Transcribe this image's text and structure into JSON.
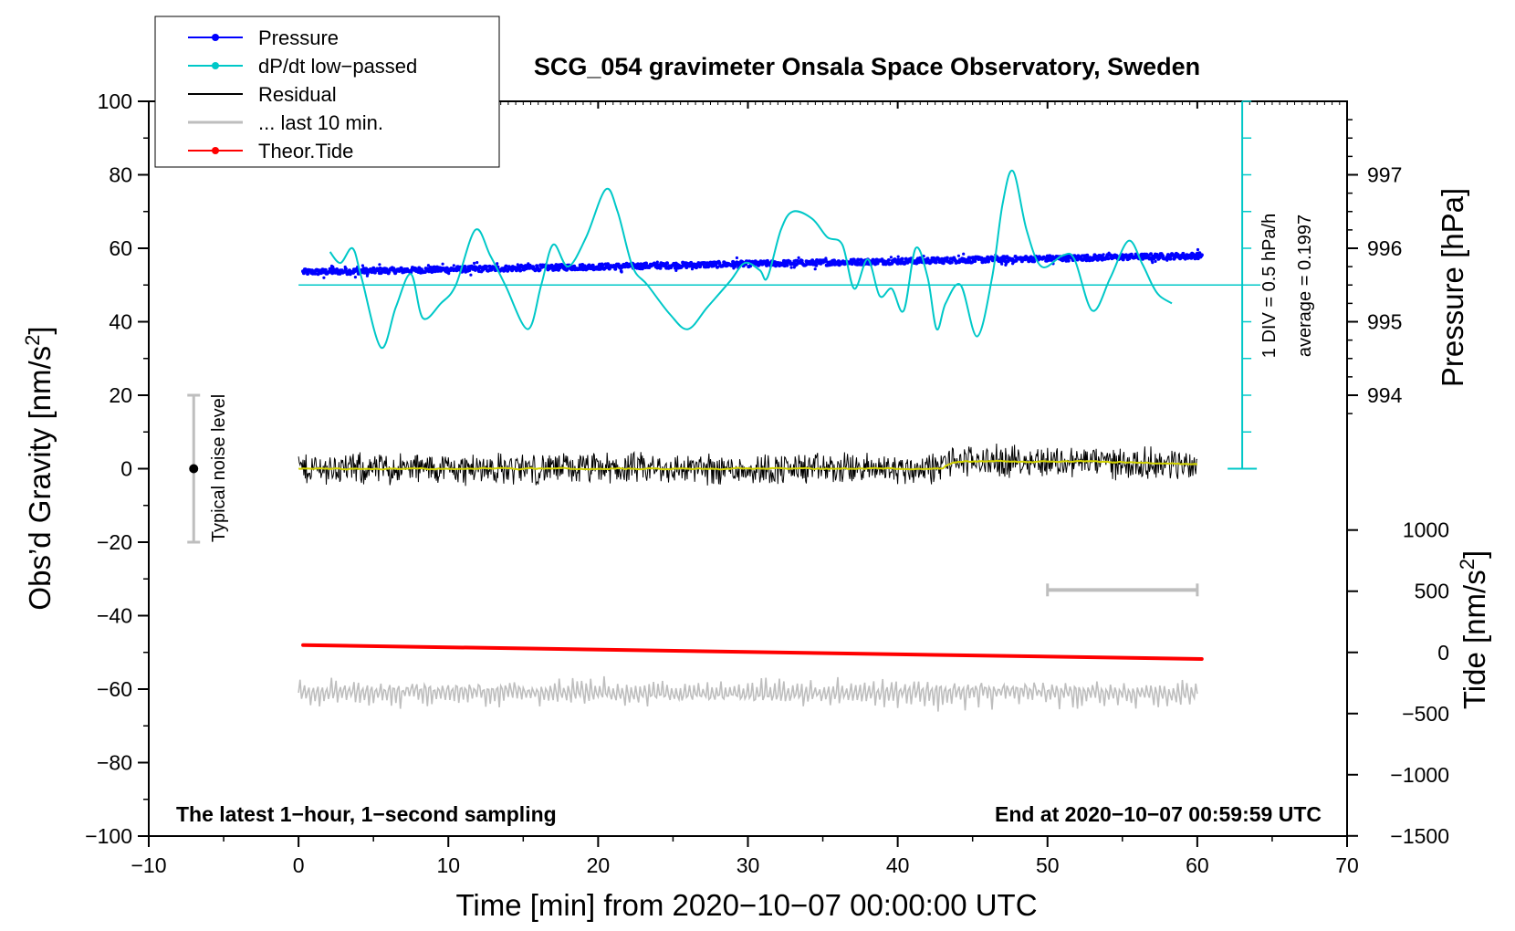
{
  "chart_data": {
    "type": "line",
    "title": "SCG_054 gravimeter Onsala Space Observatory, Sweden",
    "xlabel": "Time [min] from 2020−10−07 00:00:00 UTC",
    "ylabel_left": "Obs’d Gravity [nm/s",
    "ylabel_left_sup": "2",
    "ylabel_left_end": "]",
    "ylabel_right_pressure": "Pressure [hPa]",
    "ylabel_right_tide": "Tide [nm/s",
    "ylabel_right_tide_sup": "2",
    "ylabel_right_tide_end": "]",
    "xlim": [
      -10,
      70
    ],
    "ylim": [
      -100,
      100
    ],
    "x_ticks": [
      "−10",
      "0",
      "10",
      "20",
      "30",
      "40",
      "50",
      "60",
      "70"
    ],
    "x_tick_values": [
      -10,
      0,
      10,
      20,
      30,
      40,
      50,
      60,
      70
    ],
    "y_ticks": [
      "100",
      "80",
      "60",
      "40",
      "20",
      "0",
      "−20",
      "−40",
      "−60",
      "−80",
      "−100"
    ],
    "y_tick_values": [
      100,
      80,
      60,
      40,
      20,
      0,
      -20,
      -40,
      -60,
      -80,
      -100
    ],
    "pressure_ticks": [
      "997",
      "996",
      "995",
      "994"
    ],
    "pressure_tick_values": [
      997,
      996,
      995,
      994
    ],
    "pressure_to_gravity": {
      "p_ref": 996,
      "g_ref": 60,
      "nm_per_hpa": 20
    },
    "tide_ticks": [
      "1000",
      "500",
      "0",
      "−500",
      "−1000",
      "−1500"
    ],
    "tide_tick_values": [
      1000,
      500,
      0,
      -500,
      -1000,
      -1500
    ],
    "tide_to_gravity": {
      "t_ref": 0,
      "g_ref": -50,
      "nm_per_unit": 0.0333
    },
    "legend": [
      {
        "label": "Pressure",
        "color": "#0000ff",
        "marker": true
      },
      {
        "label": "dP/dt low−passed",
        "color": "#00c8c8",
        "marker": true
      },
      {
        "label": "Residual",
        "color": "#000000",
        "marker": false
      },
      {
        "label": "... last 10 min.",
        "color": "#bebebe",
        "marker": false
      },
      {
        "label": "Theor.Tide",
        "color": "#ff0000",
        "marker": true
      }
    ],
    "series": [
      {
        "name": "Pressure",
        "color": "#0000ff",
        "x_range": [
          0.3,
          60.3
        ],
        "start_nm": 53.5,
        "end_nm": 58.0,
        "scatter_nm": 1.5
      },
      {
        "name": "dP/dt low−passed",
        "color": "#00c8c8",
        "x": [
          2.1,
          2.8,
          3.6,
          4.2,
          5.5,
          6.5,
          7.5,
          8.3,
          9.5,
          10.5,
          11.8,
          12.8,
          13.8,
          15.3,
          16.2,
          17.0,
          18.0,
          19.2,
          20.5,
          21.3,
          22.3,
          23.3,
          24.8,
          26.0,
          27.3,
          28.8,
          29.8,
          30.8,
          31.3,
          32.2,
          33.0,
          34.3,
          35.3,
          36.3,
          37.1,
          38.0,
          38.8,
          39.6,
          40.4,
          41.2,
          42.0,
          42.6,
          43.2,
          44.2,
          45.3,
          46.3,
          47.0,
          47.7,
          48.6,
          49.6,
          51.0,
          51.8,
          53.0,
          54.2,
          55.4,
          56.3,
          57.0,
          57.5,
          58.3
        ],
        "values": [
          59,
          56,
          60,
          52,
          33,
          44,
          53,
          41,
          45,
          50,
          65,
          58,
          50,
          38,
          50,
          61,
          55,
          63,
          76,
          70,
          55,
          50,
          42,
          38,
          44,
          51,
          56,
          54,
          52,
          65,
          70,
          68,
          63,
          61,
          49,
          57,
          47,
          49,
          43,
          60,
          52,
          38,
          45,
          50,
          36,
          52,
          72,
          81,
          65,
          55,
          58,
          57,
          43,
          52,
          62,
          56,
          50,
          47,
          45
        ]
      },
      {
        "name": "Residual",
        "color": "#000000",
        "x_range": [
          0,
          60
        ],
        "level_nm": 0,
        "noise_nm": 5,
        "bump": {
          "x_start": 43,
          "x_end": 52,
          "level_nm": 2
        }
      },
      {
        "name": "Residual (smoothed)",
        "color": "#d2d200"
      },
      {
        "name": "... last 10 min.",
        "color": "#bebebe",
        "x_range": [
          0,
          60
        ],
        "level_nm": -61,
        "noise_nm": 4,
        "marker_bar_x": [
          50,
          60
        ],
        "marker_bar_y": -33
      },
      {
        "name": "Theor.Tide",
        "color": "#ff0000",
        "x": [
          0.3,
          60.3
        ],
        "values_nm": [
          -48,
          -51.8
        ]
      }
    ],
    "annotations": {
      "noise_bar_label": "Typical noise level",
      "noise_bar_range_nm": [
        -20,
        20
      ],
      "noise_bar_x": -7,
      "average_line_nm": 50,
      "dpdt_scale_x": 63,
      "dpdt_scale_range_nm": [
        0,
        100
      ],
      "dpdt_scale_label": "1 DIV = 0.5 hPa/h",
      "average_label": "average = 0.1997"
    },
    "footer_left": "The latest 1−hour, 1−second sampling",
    "footer_right": "End at 2020−10−07 00:59:59 UTC"
  }
}
